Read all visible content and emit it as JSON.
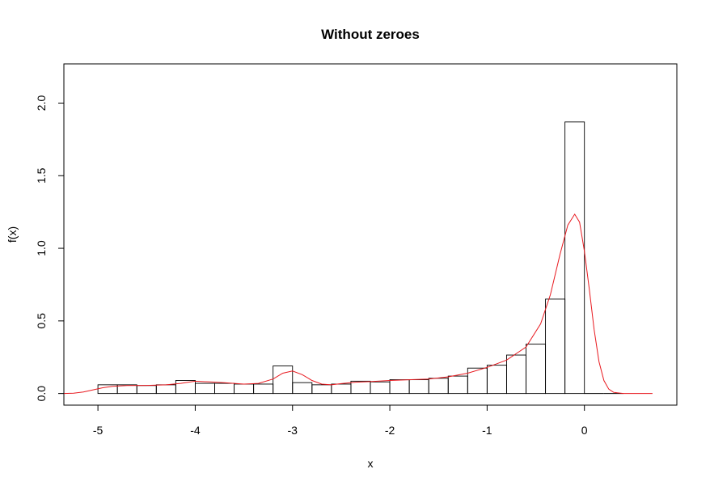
{
  "chart_data": {
    "type": "bar",
    "title": "Without zeroes",
    "xlabel": "x",
    "ylabel": "f(x)",
    "xlim": [
      -5.35,
      0.95
    ],
    "ylim": [
      -0.08,
      2.27
    ],
    "x_ticks": [
      "-5",
      "-4",
      "-3",
      "-2",
      "-1",
      "0"
    ],
    "y_ticks": [
      "0.0",
      "0.5",
      "1.0",
      "1.5",
      "2.0"
    ],
    "grid": false,
    "histogram": {
      "bin_width": 0.2,
      "bins": [
        {
          "x0": -5.0,
          "x1": -4.8,
          "density": 0.06
        },
        {
          "x0": -4.8,
          "x1": -4.6,
          "density": 0.06
        },
        {
          "x0": -4.6,
          "x1": -4.4,
          "density": 0.055
        },
        {
          "x0": -4.4,
          "x1": -4.2,
          "density": 0.06
        },
        {
          "x0": -4.2,
          "x1": -4.0,
          "density": 0.09
        },
        {
          "x0": -4.0,
          "x1": -3.8,
          "density": 0.07
        },
        {
          "x0": -3.8,
          "x1": -3.6,
          "density": 0.07
        },
        {
          "x0": -3.6,
          "x1": -3.4,
          "density": 0.065
        },
        {
          "x0": -3.4,
          "x1": -3.2,
          "density": 0.065
        },
        {
          "x0": -3.2,
          "x1": -3.0,
          "density": 0.19
        },
        {
          "x0": -3.0,
          "x1": -2.8,
          "density": 0.075
        },
        {
          "x0": -2.8,
          "x1": -2.6,
          "density": 0.06
        },
        {
          "x0": -2.6,
          "x1": -2.4,
          "density": 0.065
        },
        {
          "x0": -2.4,
          "x1": -2.2,
          "density": 0.085
        },
        {
          "x0": -2.2,
          "x1": -2.0,
          "density": 0.08
        },
        {
          "x0": -2.0,
          "x1": -1.8,
          "density": 0.095
        },
        {
          "x0": -1.8,
          "x1": -1.6,
          "density": 0.095
        },
        {
          "x0": -1.6,
          "x1": -1.4,
          "density": 0.105
        },
        {
          "x0": -1.4,
          "x1": -1.2,
          "density": 0.12
        },
        {
          "x0": -1.2,
          "x1": -1.0,
          "density": 0.175
        },
        {
          "x0": -1.0,
          "x1": -0.8,
          "density": 0.195
        },
        {
          "x0": -0.8,
          "x1": -0.6,
          "density": 0.265
        },
        {
          "x0": -0.6,
          "x1": -0.4,
          "density": 0.34
        },
        {
          "x0": -0.4,
          "x1": -0.2,
          "density": 0.65
        },
        {
          "x0": -0.2,
          "x1": 0.0,
          "density": 1.87
        },
        {
          "x0": 0.0,
          "x1": 0.2,
          "density": 0.0
        },
        {
          "x0": 0.2,
          "x1": 0.4,
          "density": 0.0
        }
      ]
    },
    "density_curve": {
      "color": "#e8191f",
      "points": [
        [
          -5.35,
          0.0
        ],
        [
          -5.25,
          0.002
        ],
        [
          -5.15,
          0.01
        ],
        [
          -5.05,
          0.025
        ],
        [
          -4.95,
          0.04
        ],
        [
          -4.85,
          0.05
        ],
        [
          -4.7,
          0.055
        ],
        [
          -4.5,
          0.056
        ],
        [
          -4.3,
          0.06
        ],
        [
          -4.15,
          0.07
        ],
        [
          -4.0,
          0.085
        ],
        [
          -3.85,
          0.08
        ],
        [
          -3.7,
          0.075
        ],
        [
          -3.5,
          0.065
        ],
        [
          -3.35,
          0.07
        ],
        [
          -3.2,
          0.1
        ],
        [
          -3.1,
          0.14
        ],
        [
          -3.0,
          0.155
        ],
        [
          -2.9,
          0.13
        ],
        [
          -2.8,
          0.09
        ],
        [
          -2.7,
          0.065
        ],
        [
          -2.6,
          0.06
        ],
        [
          -2.5,
          0.068
        ],
        [
          -2.35,
          0.078
        ],
        [
          -2.2,
          0.082
        ],
        [
          -2.0,
          0.09
        ],
        [
          -1.8,
          0.095
        ],
        [
          -1.6,
          0.1
        ],
        [
          -1.4,
          0.115
        ],
        [
          -1.2,
          0.14
        ],
        [
          -1.0,
          0.18
        ],
        [
          -0.8,
          0.23
        ],
        [
          -0.6,
          0.32
        ],
        [
          -0.45,
          0.48
        ],
        [
          -0.35,
          0.68
        ],
        [
          -0.25,
          0.96
        ],
        [
          -0.17,
          1.16
        ],
        [
          -0.1,
          1.235
        ],
        [
          -0.05,
          1.18
        ],
        [
          0.0,
          0.98
        ],
        [
          0.05,
          0.72
        ],
        [
          0.1,
          0.44
        ],
        [
          0.15,
          0.22
        ],
        [
          0.2,
          0.09
        ],
        [
          0.25,
          0.03
        ],
        [
          0.3,
          0.008
        ],
        [
          0.4,
          0.0
        ],
        [
          0.55,
          0.0
        ],
        [
          0.7,
          0.0
        ]
      ]
    }
  }
}
